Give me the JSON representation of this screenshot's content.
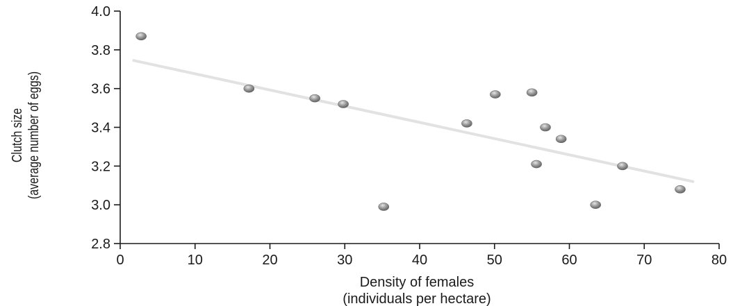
{
  "chart_data": {
    "type": "scatter",
    "title": "",
    "xlabel_line1": "Density of females",
    "xlabel_line2": "(individuals per hectare)",
    "ylabel_line1": "Clutch size",
    "ylabel_line2": "(average number of eggs)",
    "xlim": [
      0,
      80
    ],
    "ylim": [
      2.8,
      4.0
    ],
    "x_ticks": [
      0,
      10,
      20,
      30,
      40,
      50,
      60,
      70,
      80
    ],
    "y_ticks": [
      "2.8",
      "3.0",
      "3.2",
      "3.4",
      "3.6",
      "3.8",
      "4.0"
    ],
    "grid": false,
    "points": [
      {
        "x": 2.8,
        "y": 3.87
      },
      {
        "x": 17.2,
        "y": 3.6
      },
      {
        "x": 26.0,
        "y": 3.55
      },
      {
        "x": 29.8,
        "y": 3.52
      },
      {
        "x": 35.2,
        "y": 2.99
      },
      {
        "x": 46.3,
        "y": 3.42
      },
      {
        "x": 50.1,
        "y": 3.57
      },
      {
        "x": 55.0,
        "y": 3.58
      },
      {
        "x": 55.6,
        "y": 3.21
      },
      {
        "x": 56.8,
        "y": 3.4
      },
      {
        "x": 58.9,
        "y": 3.34
      },
      {
        "x": 63.5,
        "y": 3.0
      },
      {
        "x": 67.1,
        "y": 3.2
      },
      {
        "x": 74.8,
        "y": 3.08
      }
    ],
    "trendline": {
      "x": [
        1.8,
        76.5
      ],
      "y": [
        3.745,
        3.12
      ]
    },
    "colors": {
      "point": "#9a9a9a",
      "trendline": "#e2e2e2",
      "axis": "#1a1a1a"
    }
  }
}
